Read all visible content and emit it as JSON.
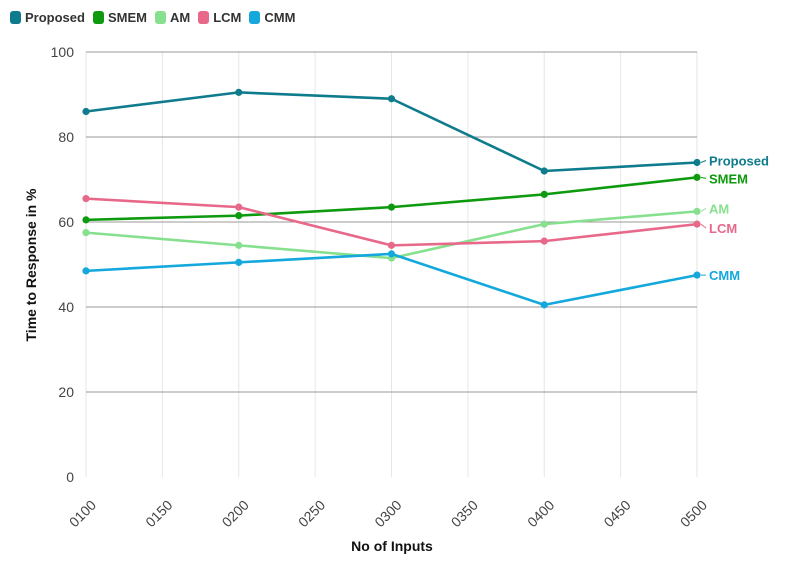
{
  "chart_data": {
    "type": "line",
    "title": "",
    "xlabel": "No of Inputs",
    "ylabel": "Time to Response in %",
    "categories": [
      "0100",
      "0150",
      "0200",
      "0250",
      "0300",
      "0350",
      "0400",
      "0450",
      "0500"
    ],
    "ylim": [
      0,
      100
    ],
    "yticks": [
      0,
      20,
      40,
      60,
      80,
      100
    ],
    "grid": true,
    "legend_position": "top-left",
    "series": [
      {
        "name": "Proposed",
        "color": "#0e7c8c",
        "x": [
          "0100",
          "0200",
          "0300",
          "0400",
          "0500"
        ],
        "values": [
          86,
          90.5,
          89,
          72,
          74
        ]
      },
      {
        "name": "SMEM",
        "color": "#0e9a0e",
        "x": [
          "0100",
          "0200",
          "0300",
          "0400",
          "0500"
        ],
        "values": [
          60.5,
          61.5,
          63.5,
          66.5,
          70.5
        ]
      },
      {
        "name": "AM",
        "color": "#86e08e",
        "x": [
          "0100",
          "0200",
          "0300",
          "0400",
          "0500"
        ],
        "values": [
          57.5,
          54.5,
          51.5,
          59.5,
          62.5
        ]
      },
      {
        "name": "LCM",
        "color": "#e8688a",
        "x": [
          "0100",
          "0200",
          "0300",
          "0400",
          "0500"
        ],
        "values": [
          65.5,
          63.5,
          54.5,
          55.5,
          59.5
        ]
      },
      {
        "name": "CMM",
        "color": "#14a8dc",
        "x": [
          "0100",
          "0200",
          "0300",
          "0400",
          "0500"
        ],
        "values": [
          48.5,
          50.5,
          52.5,
          40.5,
          47.5
        ]
      }
    ]
  }
}
